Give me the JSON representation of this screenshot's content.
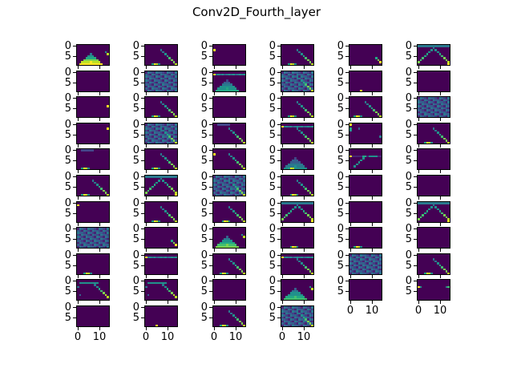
{
  "figure": {
    "title": "Conv2D_Fourth_layer"
  },
  "chart_data": {
    "type": "heatmap",
    "title": "Conv2D_Fourth_layer",
    "description": "Grid of 64 feature-map activations (viridis colormap), 6 columns; columns 1-4 have 11 rows, columns 5-6 have 10 rows. Each map is 10 rows x 15 cols.",
    "map_shape": [
      10,
      15
    ],
    "colormap": "viridis",
    "yticks": [
      "0",
      "5"
    ],
    "xticks": [
      "0",
      "10"
    ],
    "grid": {
      "columns": 6,
      "rows_per_column": [
        11,
        11,
        11,
        11,
        10,
        10
      ]
    },
    "panels": [
      [
        {
          "p": "tri",
          "v": 1.0,
          "extra": "rightdot"
        },
        {
          "p": "blank"
        },
        {
          "p": "dot",
          "r": 4,
          "c": 14
        },
        {
          "p": "dot",
          "r": 2,
          "c": 14
        },
        {
          "p": "bottombar",
          "c": 3,
          "extra": "faint"
        },
        {
          "p": "bottombar",
          "c": 3,
          "extra": "diag"
        },
        {
          "p": "dot",
          "r": 1,
          "c": 0
        },
        {
          "p": "busy"
        },
        {
          "p": "bottombar",
          "c": 4
        },
        {
          "p": "topdiag"
        },
        {
          "p": "blank"
        }
      ],
      [
        {
          "p": "diag",
          "extra": "bottombar"
        },
        {
          "p": "busy"
        },
        {
          "p": "diag",
          "extra": "bottombar"
        },
        {
          "p": "diag",
          "extra": "busy"
        },
        {
          "p": "diag",
          "extra": "bottombar"
        },
        {
          "p": "vee"
        },
        {
          "p": "diag",
          "extra": "bottombar"
        },
        {
          "p": "shortdiag"
        },
        {
          "p": "topline"
        },
        {
          "p": "topdiag"
        },
        {
          "p": "dot",
          "r": 9,
          "c": 5
        }
      ],
      [
        {
          "p": "dot",
          "r": 2,
          "c": 0
        },
        {
          "p": "tri",
          "v": 0.6,
          "extra": "topline"
        },
        {
          "p": "blank"
        },
        {
          "p": "diag",
          "extra": "faint"
        },
        {
          "p": "diag",
          "extra": "leftdot"
        },
        {
          "p": "diag",
          "extra": "busy"
        },
        {
          "p": "bottombar",
          "c": 5,
          "extra": "diag"
        },
        {
          "p": "tri",
          "v": 0.8,
          "extra": "rightdot"
        },
        {
          "p": "diag",
          "extra": "bottombar"
        },
        {
          "p": "blank"
        },
        {
          "p": "diag",
          "extra": "bottombar"
        }
      ],
      [
        {
          "p": "bottombar",
          "c": 4,
          "extra": "diag"
        },
        {
          "p": "diag",
          "extra": "busy"
        },
        {
          "p": "diag",
          "extra": "bottombar"
        },
        {
          "p": "diag",
          "extra": "topline"
        },
        {
          "p": "tri",
          "v": 0.5,
          "extra": "bottombar"
        },
        {
          "p": "bottombar",
          "c": 5,
          "extra": "diag"
        },
        {
          "p": "vee"
        },
        {
          "p": "bottombar",
          "c": 5
        },
        {
          "p": "diag",
          "extra": "topline"
        },
        {
          "p": "tri",
          "v": 0.7,
          "extra": "rightdot"
        },
        {
          "p": "diag",
          "extra": "busy"
        }
      ],
      [
        {
          "p": "shortdiag"
        },
        {
          "p": "dot",
          "r": 9,
          "c": 5
        },
        {
          "p": "bottombar",
          "c": 3,
          "extra": "diag"
        },
        {
          "p": "leftspots"
        },
        {
          "p": "peak"
        },
        {
          "p": "blank"
        },
        {
          "p": "blank"
        },
        {
          "p": "bottombar",
          "c": 3
        },
        {
          "p": "busy"
        },
        {
          "p": "blank"
        }
      ],
      [
        {
          "p": "vee"
        },
        {
          "p": "blank"
        },
        {
          "p": "busy"
        },
        {
          "p": "diag",
          "extra": "bottombar"
        },
        {
          "p": "blank"
        },
        {
          "p": "blank"
        },
        {
          "p": "vee"
        },
        {
          "p": "blank"
        },
        {
          "p": "bottombar",
          "c": 4,
          "extra": "diag"
        },
        {
          "p": "edgedots"
        }
      ]
    ]
  }
}
